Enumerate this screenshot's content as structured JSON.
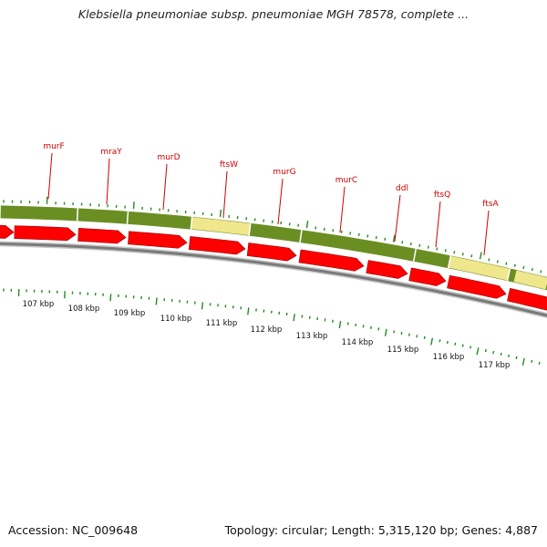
{
  "title": "Klebsiella pneumoniae subsp. pneumoniae MGH 78578, complete ...",
  "footer": {
    "accession": "Accession: NC_009648",
    "summary": "Topology: circular; Length: 5,315,120 bp; Genes: 4,887"
  },
  "colors": {
    "gene_label": "#cc0000",
    "cds_arrow": "#ff0000",
    "olive_band": "#6b8e23",
    "khaki_band": "#f0e68c",
    "tick": "#228b22",
    "backbone": "#888888"
  },
  "gene_labels": [
    {
      "name": "murF"
    },
    {
      "name": "mraY"
    },
    {
      "name": "murD"
    },
    {
      "name": "ftsW"
    },
    {
      "name": "murG"
    },
    {
      "name": "murC"
    },
    {
      "name": "ddl"
    },
    {
      "name": "ftsQ"
    },
    {
      "name": "ftsA"
    }
  ],
  "kbp_labels": [
    "107 kbp",
    "108 kbp",
    "109 kbp",
    "110 kbp",
    "111 kbp",
    "112 kbp",
    "113 kbp",
    "114 kbp",
    "115 kbp",
    "116 kbp",
    "117 kbp"
  ]
}
